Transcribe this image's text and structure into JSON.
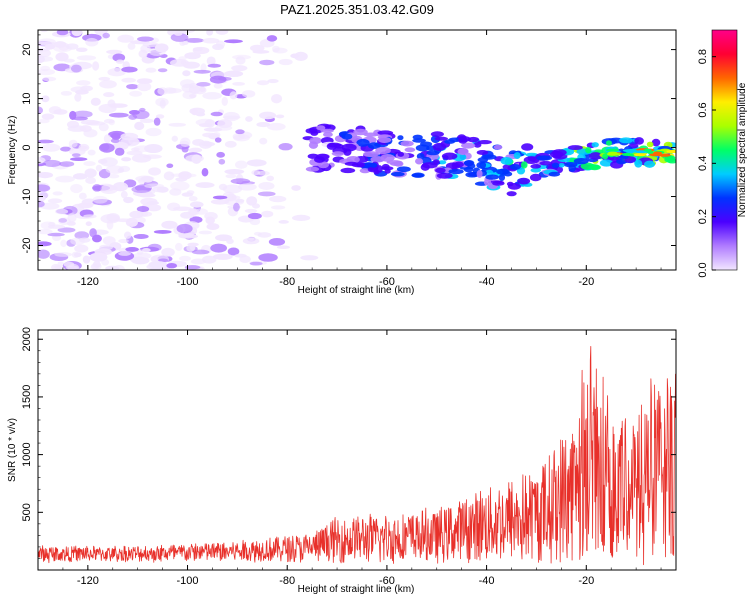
{
  "title": "PAZ1.2025.351.03.42.G09",
  "chart_data": [
    {
      "type": "heatmap",
      "name": "spectrogram",
      "xlabel": "Height of straight line (km)",
      "ylabel": "Frequency (Hz)",
      "xlim": [
        -130,
        -2
      ],
      "ylim": [
        -25,
        24
      ],
      "xticks": [
        -120,
        -100,
        -80,
        -60,
        -40,
        -20
      ],
      "yticks": [
        -20,
        -10,
        0,
        10,
        20
      ],
      "colorbar": {
        "label": "Normalized spectral amplitude",
        "range": [
          0.0,
          0.9
        ],
        "ticks": [
          0.0,
          0.2,
          0.4,
          0.6,
          0.8
        ]
      },
      "features": [
        {
          "kind": "diffuse-noise",
          "x_range": [
            -130,
            -75
          ],
          "y_range": [
            -25,
            24
          ],
          "peak_amplitude": 0.2
        },
        {
          "kind": "signal-band",
          "center_freq": [
            [
              -75,
              0
            ],
            [
              -60,
              -1
            ],
            [
              -45,
              -2
            ],
            [
              -35,
              -5
            ],
            [
              -25,
              -3
            ],
            [
              -15,
              -1
            ],
            [
              -2,
              -1
            ]
          ],
          "peak_amplitude": 0.85
        }
      ]
    },
    {
      "type": "line",
      "name": "snr",
      "xlabel": "Height of straight line (km)",
      "ylabel": "SNR (10 * v/v)",
      "xlim": [
        -130,
        -2
      ],
      "ylim": [
        0,
        2080
      ],
      "xticks": [
        -120,
        -100,
        -80,
        -60,
        -40,
        -20
      ],
      "yticks": [
        500,
        1000,
        1500,
        2000
      ],
      "color": "#e8302a",
      "envelope": [
        {
          "x": -130,
          "y": 130
        },
        {
          "x": -110,
          "y": 130
        },
        {
          "x": -90,
          "y": 180
        },
        {
          "x": -75,
          "y": 240
        },
        {
          "x": -70,
          "y": 380
        },
        {
          "x": -50,
          "y": 450
        },
        {
          "x": -40,
          "y": 650
        },
        {
          "x": -30,
          "y": 800
        },
        {
          "x": -22,
          "y": 1300
        },
        {
          "x": -20,
          "y": 1700
        },
        {
          "x": -15,
          "y": 1300
        },
        {
          "x": -10,
          "y": 1250
        },
        {
          "x": -5,
          "y": 1550
        },
        {
          "x": -2,
          "y": 1450
        }
      ]
    }
  ]
}
